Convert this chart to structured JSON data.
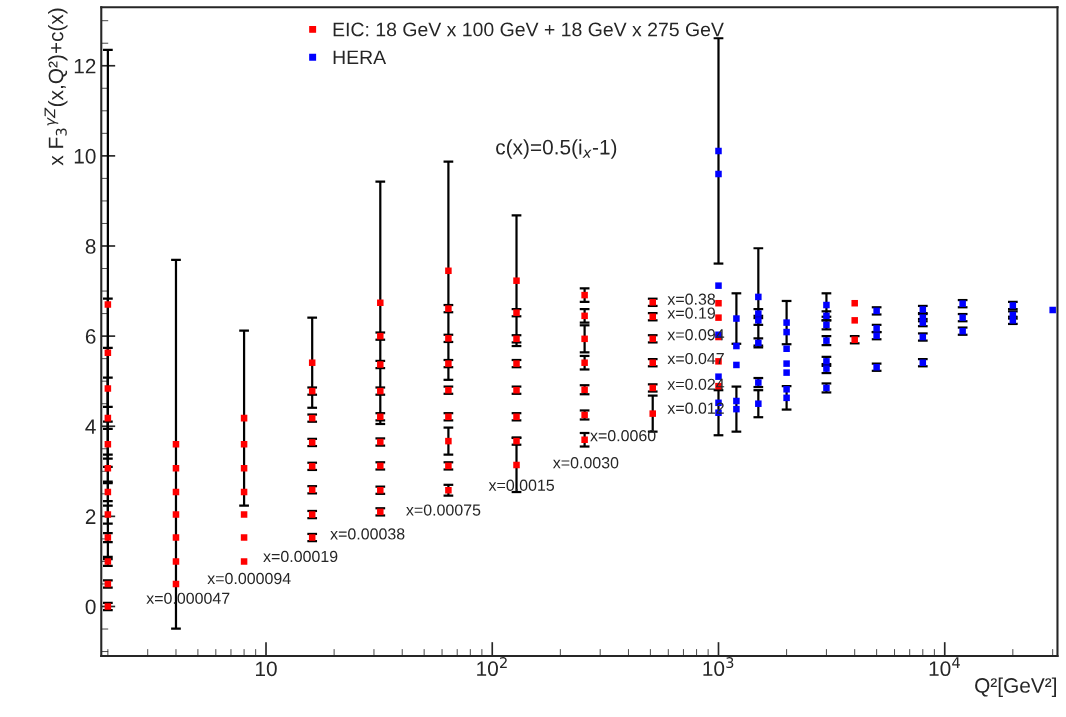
{
  "chart_data": {
    "type": "scatter",
    "xlabel": "Q²[GeV²]",
    "ylabel": "x F$_{3}$$^{γZ}$(x,Q²)+c(x)",
    "log": "x",
    "xlim": [
      1.87,
      31500
    ],
    "ylim": [
      -1.1,
      13.3
    ],
    "xticks": [
      10,
      {
        "value": 100,
        "label": "10$^{2}$"
      },
      {
        "value": 1000,
        "label": "10$^{3}$"
      },
      {
        "value": 10000,
        "label": "10$^{4}$"
      }
    ],
    "yticks": [
      0,
      2,
      4,
      6,
      8,
      10,
      12
    ],
    "grid": false,
    "legend": "top",
    "marker": "square",
    "series": [
      {
        "name": "EIC: 18 GeV x 100 GeV + 18 GeV x 275 GeV",
        "color": "#ff0000",
        "x": [
          2,
          2,
          2,
          2,
          2,
          2,
          2,
          2,
          2,
          2,
          2,
          2,
          4,
          4,
          4,
          4,
          4,
          4,
          4,
          8,
          8,
          8,
          8,
          8,
          8,
          8,
          16,
          16,
          16,
          16,
          16,
          16,
          16,
          16,
          32,
          32,
          32,
          32,
          32,
          32,
          32,
          32,
          32,
          64,
          64,
          64,
          64,
          64,
          64,
          64,
          64,
          64,
          128,
          128,
          128,
          128,
          128,
          128,
          128,
          128,
          256,
          256,
          256,
          256,
          256,
          256,
          256,
          512,
          512,
          512,
          512,
          512,
          512,
          1000,
          1000,
          1000,
          1000,
          1000,
          4000,
          4000,
          4000
        ],
        "values": [
          6.7,
          5.63,
          4.84,
          4.18,
          3.6,
          3.07,
          2.54,
          2.04,
          1.53,
          1.0,
          0.5,
          0.0,
          3.6,
          3.07,
          2.54,
          2.04,
          1.53,
          1.0,
          0.5,
          4.18,
          3.6,
          3.07,
          2.54,
          2.04,
          1.53,
          1.0,
          5.41,
          4.78,
          4.18,
          3.64,
          3.11,
          2.59,
          2.04,
          1.53,
          6.74,
          6.0,
          5.37,
          4.78,
          4.21,
          3.65,
          3.12,
          2.58,
          2.1,
          7.45,
          6.61,
          5.95,
          5.39,
          4.8,
          4.21,
          3.67,
          3.12,
          2.58,
          7.23,
          6.52,
          5.94,
          5.39,
          4.8,
          4.21,
          3.67,
          3.14,
          6.91,
          6.45,
          5.94,
          5.41,
          4.81,
          4.25,
          3.7,
          6.75,
          6.43,
          5.94,
          5.41,
          4.85,
          4.28,
          6.73,
          6.41,
          5.98,
          5.44,
          4.89,
          6.73,
          6.35,
          5.92
        ],
        "errors": [
          5.65,
          1.2,
          0.9,
          0.9,
          0.5,
          0.3,
          0.2,
          0.2,
          0.1,
          0.1,
          0.08,
          0.08,
          4.09,
          null,
          null,
          null,
          null,
          null,
          null,
          1.94,
          null,
          null,
          null,
          null,
          null,
          null,
          1.0,
          0.08,
          0.08,
          0.08,
          0.08,
          0.08,
          0.08,
          0.08,
          2.69,
          0.08,
          0.08,
          0.08,
          0.08,
          0.08,
          0.08,
          0.08,
          0.08,
          2.42,
          0.08,
          0.08,
          0.08,
          0.08,
          0.08,
          0.3,
          0.08,
          0.12,
          1.45,
          0.08,
          0.08,
          0.08,
          0.08,
          0.08,
          0.08,
          0.6,
          0.15,
          0.15,
          0.3,
          0.15,
          0.1,
          0.1,
          0.15,
          0.08,
          0.08,
          0.08,
          0.08,
          0.08,
          0.4,
          null,
          null,
          null,
          null,
          null,
          null,
          null,
          0.08
        ]
      },
      {
        "name": "HERA",
        "color": "#0000ff",
        "x": [
          1000,
          1000,
          1000,
          1000,
          1000,
          1000,
          1000,
          1200,
          1200,
          1200,
          1200,
          1200,
          1500,
          1500,
          1500,
          1500,
          1500,
          1500,
          2000,
          2000,
          2000,
          2000,
          2000,
          2000,
          2000,
          3000,
          3000,
          3000,
          3000,
          3000,
          3000,
          3000,
          5000,
          5000,
          5000,
          5000,
          8000,
          8000,
          8000,
          8000,
          8000,
          12000,
          12000,
          12000,
          20000,
          20000,
          20000,
          30000
        ],
        "values": [
          10.11,
          9.6,
          7.12,
          6.03,
          5.1,
          4.52,
          4.3,
          6.39,
          5.78,
          5.36,
          4.56,
          4.38,
          6.87,
          6.5,
          6.35,
          5.85,
          4.97,
          4.5,
          6.3,
          6.09,
          5.72,
          5.39,
          5.19,
          4.82,
          4.63,
          6.69,
          6.45,
          6.25,
          5.9,
          5.44,
          5.28,
          4.85,
          6.56,
          6.17,
          6.01,
          5.31,
          6.59,
          6.41,
          6.3,
          5.98,
          5.41,
          6.72,
          6.41,
          6.11,
          6.68,
          6.47,
          6.35,
          6.58
        ],
        "errors": [
          2.5,
          null,
          null,
          null,
          null,
          null,
          0.5,
          0.56,
          null,
          null,
          null,
          0.5,
          1.08,
          0.1,
          0.1,
          0.1,
          0.1,
          0.3,
          0.48,
          null,
          null,
          null,
          null,
          null,
          0.26,
          0.26,
          0.1,
          0.1,
          0.1,
          0.1,
          0.1,
          0.1,
          0.08,
          0.08,
          0.08,
          0.08,
          0.08,
          0.08,
          0.08,
          0.08,
          0.08,
          0.08,
          0.08,
          0.08,
          0.08,
          0.08,
          0.08,
          null
        ]
      }
    ],
    "annotations": [
      "x=0.000047",
      "x=0.000094",
      "x=0.00019",
      "x=0.00038",
      "x=0.00075",
      "x=0.0015",
      "x=0.0030",
      "x=0.0060",
      "x=0.012",
      "x=0.024",
      "x=0.047",
      "x=0.094",
      "x=0.19",
      "x=0.38",
      "c(x)=0.5(i$_{x}$-1)"
    ]
  }
}
